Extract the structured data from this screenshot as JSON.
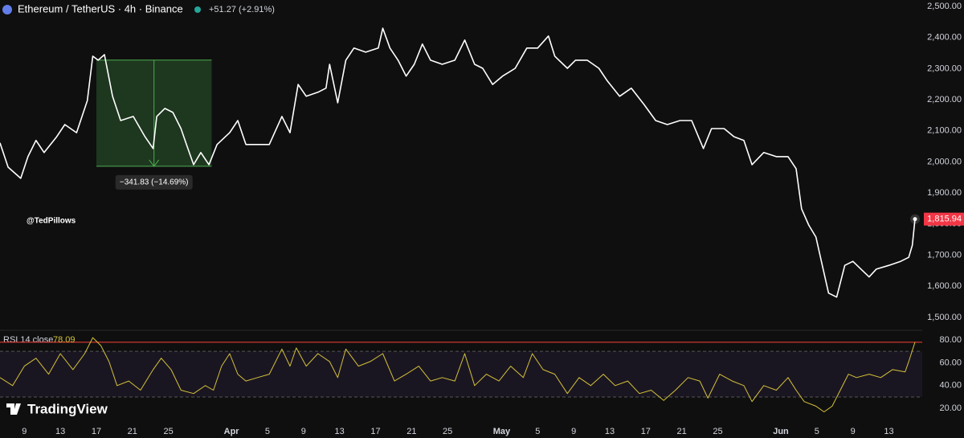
{
  "chart_data": [
    {
      "type": "line",
      "title": "Ethereum / TetherUS · 4h · Binance",
      "subtitle": "+51.27 (+2.91%)",
      "x": [
        -2.7,
        -1.8,
        -0.4,
        0.4,
        1.3,
        2.2,
        3.6,
        4.5,
        5.8,
        7.0,
        7.6,
        8.2,
        8.9,
        9.8,
        10.7,
        12.1,
        13.4,
        14.3,
        14.7,
        15.6,
        16.5,
        17.4,
        18.0,
        18.8,
        19.6,
        20.5,
        21.4,
        22.8,
        23.7,
        24.6,
        25.9,
        27.2,
        28.6,
        29.5,
        30.4,
        31.3,
        32.6,
        33.5,
        33.9,
        34.8,
        35.7,
        36.6,
        37.9,
        39.3,
        39.8,
        40.6,
        41.5,
        42.4,
        43.3,
        44.2,
        45.1,
        46.4,
        47.8,
        48.9,
        50.0,
        50.9,
        52.0,
        53.1,
        54.5,
        55.8,
        57.0,
        58.2,
        58.9,
        60.3,
        61.2,
        62.5,
        63.8,
        64.7,
        66.1,
        67.4,
        68.8,
        70.1,
        71.4,
        72.8,
        74.1,
        75.4,
        76.3,
        77.7,
        78.8,
        79.9,
        80.8,
        82.1,
        83.5,
        84.8,
        85.7,
        86.3,
        87.1,
        87.9,
        88.6,
        89.3,
        90.2,
        91.1,
        92.0,
        92.9,
        93.8,
        94.6,
        96.0,
        97.3,
        98.2,
        98.6,
        98.9
      ],
      "series": [
        {
          "color": "#ffffff",
          "values": [
            2061,
            1983,
            1947,
            2017,
            2069,
            2030,
            2081,
            2120,
            2094,
            2197,
            2340,
            2327,
            2345,
            2211,
            2133,
            2146,
            2081,
            2043,
            2146,
            2172,
            2159,
            2107,
            2056,
            1991,
            2030,
            1991,
            2056,
            2094,
            2133,
            2056,
            2056,
            2056,
            2146,
            2094,
            2249,
            2211,
            2224,
            2237,
            2314,
            2190,
            2327,
            2366,
            2353,
            2366,
            2430,
            2366,
            2327,
            2276,
            2314,
            2379,
            2327,
            2314,
            2327,
            2392,
            2314,
            2301,
            2249,
            2276,
            2301,
            2366,
            2366,
            2405,
            2340,
            2301,
            2327,
            2327,
            2301,
            2262,
            2211,
            2237,
            2185,
            2133,
            2120,
            2133,
            2133,
            2043,
            2107,
            2107,
            2081,
            2069,
            1991,
            2030,
            2017,
            2017,
            1978,
            1849,
            1797,
            1758,
            1667,
            1578,
            1565,
            1667,
            1680,
            1655,
            1630,
            1655,
            1667,
            1680,
            1693,
            1732,
            1815.94
          ]
        }
      ],
      "last_label": "1,815.94",
      "label_color": "#f23645",
      "xlim": [
        -2.7,
        99.7
      ],
      "ylim": [
        1466,
        2520.7
      ],
      "yticks": [
        {
          "value": 1500,
          "label": "1,500.00"
        },
        {
          "value": 1600,
          "label": "1,600.00"
        },
        {
          "value": 1700,
          "label": "1,700.00"
        },
        {
          "value": 1800,
          "label": "1,800.00"
        },
        {
          "value": 1900,
          "label": "1,900.00"
        },
        {
          "value": 2000,
          "label": "2,000.00"
        },
        {
          "value": 2100,
          "label": "2,100.00"
        },
        {
          "value": 2200,
          "label": "2,200.00"
        },
        {
          "value": 2300,
          "label": "2,300.00"
        },
        {
          "value": 2400,
          "label": "2,400.00"
        },
        {
          "value": 2500,
          "label": "2,500.00"
        }
      ],
      "measure": {
        "x": [
          8.0,
          20.8
        ],
        "y": [
          2327.6,
          1985.77
        ],
        "label": "−341.83 (−14.69%)",
        "color": "#4caf50"
      },
      "watermark": "@TedPillows"
    },
    {
      "type": "line",
      "title": "RSI 14 close",
      "x": [
        -2.7,
        -1.3,
        0,
        1.3,
        2.7,
        4.0,
        5.4,
        6.7,
        7.6,
        8.5,
        9.4,
        10.3,
        11.6,
        12.9,
        14.3,
        15.2,
        16.3,
        17.4,
        18.8,
        20.1,
        21.0,
        21.9,
        22.8,
        23.7,
        24.6,
        25.9,
        27.2,
        28.6,
        29.5,
        30.2,
        31.3,
        32.6,
        33.9,
        34.8,
        35.7,
        37.1,
        38.4,
        39.8,
        41.1,
        42.4,
        43.8,
        45.1,
        46.4,
        47.8,
        48.9,
        50.0,
        51.3,
        52.7,
        54.0,
        55.4,
        56.4,
        57.6,
        58.9,
        60.3,
        61.6,
        62.9,
        64.3,
        65.6,
        67.0,
        68.3,
        69.6,
        71.0,
        72.3,
        73.7,
        75.0,
        75.9,
        77.2,
        78.6,
        79.9,
        80.8,
        82.1,
        83.5,
        84.8,
        85.7,
        86.6,
        87.9,
        88.8,
        89.7,
        90.6,
        91.5,
        92.4,
        93.8,
        95.1,
        96.4,
        97.8,
        98.2,
        98.9
      ],
      "series": [
        {
          "color": "#d4c13a",
          "values": [
            47,
            40,
            57,
            64,
            50,
            68,
            54,
            68,
            82,
            75,
            61,
            40,
            44,
            36,
            54,
            64,
            54,
            36,
            33,
            40,
            36,
            57,
            68,
            50,
            44,
            47,
            50,
            72,
            57,
            73,
            57,
            68,
            61,
            47,
            72,
            57,
            61,
            68,
            44,
            50,
            57,
            44,
            47,
            44,
            68,
            40,
            50,
            44,
            57,
            47,
            68,
            54,
            50,
            33,
            47,
            40,
            50,
            40,
            44,
            33,
            36,
            27,
            36,
            47,
            44,
            29,
            50,
            44,
            40,
            26,
            40,
            36,
            47,
            36,
            26,
            22,
            17,
            22,
            36,
            50,
            47,
            50,
            47,
            54,
            52,
            61,
            78.09
          ]
        }
      ],
      "xlim": [
        -2.7,
        99.7
      ],
      "ylim": [
        13.1,
        85.6
      ],
      "yticks": [
        {
          "value": 20,
          "label": "20.00"
        },
        {
          "value": 40,
          "label": "40.00"
        },
        {
          "value": 60,
          "label": "60.00"
        },
        {
          "value": 80,
          "label": "80.00"
        }
      ],
      "bands": [
        30,
        70
      ],
      "hline": 78,
      "hline_color": "#e53935",
      "xticks": [
        {
          "value": 0,
          "label": "9"
        },
        {
          "value": 4,
          "label": "13"
        },
        {
          "value": 8,
          "label": "17"
        },
        {
          "value": 12,
          "label": "21"
        },
        {
          "value": 16,
          "label": "25"
        },
        {
          "value": 23,
          "label": "Apr"
        },
        {
          "value": 27,
          "label": "5"
        },
        {
          "value": 31,
          "label": "9"
        },
        {
          "value": 35,
          "label": "13"
        },
        {
          "value": 39,
          "label": "17"
        },
        {
          "value": 43,
          "label": "21"
        },
        {
          "value": 47,
          "label": "25"
        },
        {
          "value": 53,
          "label": "May"
        },
        {
          "value": 57,
          "label": "5"
        },
        {
          "value": 61,
          "label": "9"
        },
        {
          "value": 65,
          "label": "13"
        },
        {
          "value": 69,
          "label": "17"
        },
        {
          "value": 73,
          "label": "21"
        },
        {
          "value": 77,
          "label": "25"
        },
        {
          "value": 84,
          "label": "Jun"
        },
        {
          "value": 88,
          "label": "5"
        },
        {
          "value": 92,
          "label": "9"
        },
        {
          "value": 96,
          "label": "13"
        }
      ]
    }
  ],
  "logo": "TradingView"
}
